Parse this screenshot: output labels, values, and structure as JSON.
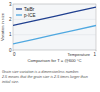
{
  "chart_data": {
    "type": "line",
    "x_label": "Temperature",
    "y_label": "Variation in size",
    "x": [
      0,
      0.25,
      0.5,
      0.75,
      1
    ],
    "series": [
      {
        "name": "TaiBr",
        "color": "#1f3f8f",
        "values": [
          1.6,
          1.9,
          2.2,
          2.5,
          2.8
        ]
      },
      {
        "name": "p-ICE",
        "color": "#4fa8e0",
        "values": [
          0.4,
          0.7,
          1.0,
          1.3,
          1.6
        ]
      }
    ],
    "xlim": [
      0,
      1
    ],
    "xticks": [
      0,
      1
    ],
    "ylim": [
      0,
      3
    ],
    "yticks": [
      0,
      1,
      2,
      3
    ],
    "legend": "upper left",
    "annotations": [
      "Comparison for T = @600 °C",
      "Grain size variation is a dimensionless number.",
      "2.5 means that the grain size is 2.5 times larger than",
      "initial size."
    ]
  }
}
